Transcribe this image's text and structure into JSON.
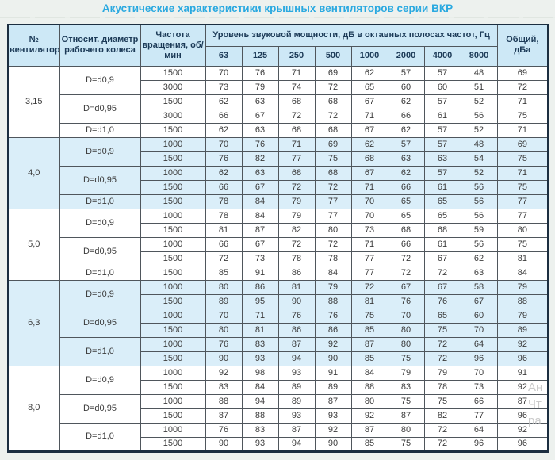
{
  "title": "Акустические характеристики крышных вентиляторов серии ВКР",
  "colors": {
    "title_text": "#2AA9E0",
    "header_bg": "#CDE8F6",
    "shaded_row_bg": "#DAEEF9",
    "header_text": "#1C3A57",
    "cell_text": "#3B3B3B",
    "outer_border": "#1C2E40",
    "inner_border": "#4F565C",
    "page_bg": "#EDF1EE"
  },
  "watermark": {
    "lines": [
      "Ан",
      "Чт",
      "ра"
    ]
  },
  "table": {
    "headers": {
      "fan_no": "№ вентилятора",
      "diameter": "Относит. диаметр рабочего колеса",
      "speed": "Частота вращения, об/мин",
      "spl_group": "Уровень звуковой мощности, дБ в октавных полосах частот, Гц",
      "frequencies": [
        "63",
        "125",
        "250",
        "500",
        "1000",
        "2000",
        "4000",
        "8000"
      ],
      "total": "Общий, дБа"
    },
    "sections": [
      {
        "fan": "3,15",
        "shaded": false,
        "groups": [
          {
            "diameter": "D=d0,9",
            "rows": [
              {
                "speed": "1500",
                "levels": [
                  70,
                  76,
                  71,
                  69,
                  62,
                  57,
                  57,
                  48
                ],
                "total": 69
              },
              {
                "speed": "3000",
                "levels": [
                  73,
                  79,
                  74,
                  72,
                  65,
                  60,
                  60,
                  51
                ],
                "total": 72
              }
            ]
          },
          {
            "diameter": "D=d0,95",
            "rows": [
              {
                "speed": "1500",
                "levels": [
                  62,
                  63,
                  68,
                  68,
                  67,
                  62,
                  57,
                  52
                ],
                "total": 71
              },
              {
                "speed": "3000",
                "levels": [
                  66,
                  67,
                  72,
                  72,
                  71,
                  66,
                  61,
                  56
                ],
                "total": 75
              }
            ]
          },
          {
            "diameter": "D=d1,0",
            "rows": [
              {
                "speed": "1500",
                "levels": [
                  62,
                  63,
                  68,
                  68,
                  67,
                  62,
                  57,
                  52
                ],
                "total": 71
              }
            ]
          }
        ]
      },
      {
        "fan": "4,0",
        "shaded": true,
        "groups": [
          {
            "diameter": "D=d0,9",
            "rows": [
              {
                "speed": "1000",
                "levels": [
                  70,
                  76,
                  71,
                  69,
                  62,
                  57,
                  57,
                  48
                ],
                "total": 69
              },
              {
                "speed": "1500",
                "levels": [
                  76,
                  82,
                  77,
                  75,
                  68,
                  63,
                  63,
                  54
                ],
                "total": 75
              }
            ]
          },
          {
            "diameter": "D=d0,95",
            "rows": [
              {
                "speed": "1000",
                "levels": [
                  62,
                  63,
                  68,
                  68,
                  67,
                  62,
                  57,
                  52
                ],
                "total": 71
              },
              {
                "speed": "1500",
                "levels": [
                  66,
                  67,
                  72,
                  72,
                  71,
                  66,
                  61,
                  56
                ],
                "total": 75
              }
            ]
          },
          {
            "diameter": "D=d1,0",
            "rows": [
              {
                "speed": "1500",
                "levels": [
                  78,
                  84,
                  79,
                  77,
                  70,
                  65,
                  65,
                  56
                ],
                "total": 77
              }
            ]
          }
        ]
      },
      {
        "fan": "5,0",
        "shaded": false,
        "groups": [
          {
            "diameter": "D=d0,9",
            "rows": [
              {
                "speed": "1000",
                "levels": [
                  78,
                  84,
                  79,
                  77,
                  70,
                  65,
                  65,
                  56
                ],
                "total": 77
              },
              {
                "speed": "1500",
                "levels": [
                  81,
                  87,
                  82,
                  80,
                  73,
                  68,
                  68,
                  59
                ],
                "total": 80
              }
            ]
          },
          {
            "diameter": "D=d0,95",
            "rows": [
              {
                "speed": "1000",
                "levels": [
                  66,
                  67,
                  72,
                  72,
                  71,
                  66,
                  61,
                  56
                ],
                "total": 75
              },
              {
                "speed": "1500",
                "levels": [
                  72,
                  73,
                  78,
                  78,
                  77,
                  72,
                  67,
                  62
                ],
                "total": 81
              }
            ]
          },
          {
            "diameter": "D=d1,0",
            "rows": [
              {
                "speed": "1500",
                "levels": [
                  85,
                  91,
                  86,
                  84,
                  77,
                  72,
                  72,
                  63
                ],
                "total": 84
              }
            ]
          }
        ]
      },
      {
        "fan": "6,3",
        "shaded": true,
        "groups": [
          {
            "diameter": "D=d0,9",
            "rows": [
              {
                "speed": "1000",
                "levels": [
                  80,
                  86,
                  81,
                  79,
                  72,
                  67,
                  67,
                  58
                ],
                "total": 79
              },
              {
                "speed": "1500",
                "levels": [
                  89,
                  95,
                  90,
                  88,
                  81,
                  76,
                  76,
                  67
                ],
                "total": 88
              }
            ]
          },
          {
            "diameter": "D=d0,95",
            "rows": [
              {
                "speed": "1000",
                "levels": [
                  70,
                  71,
                  76,
                  76,
                  75,
                  70,
                  65,
                  60
                ],
                "total": 79
              },
              {
                "speed": "1500",
                "levels": [
                  80,
                  81,
                  86,
                  86,
                  85,
                  80,
                  75,
                  70
                ],
                "total": 89
              }
            ]
          },
          {
            "diameter": "D=d1,0",
            "rows": [
              {
                "speed": "1000",
                "levels": [
                  76,
                  83,
                  87,
                  92,
                  87,
                  80,
                  72,
                  64
                ],
                "total": 92
              },
              {
                "speed": "1500",
                "levels": [
                  90,
                  93,
                  94,
                  90,
                  85,
                  75,
                  72,
                  96
                ],
                "total": 96
              }
            ]
          }
        ]
      },
      {
        "fan": "8,0",
        "shaded": false,
        "groups": [
          {
            "diameter": "D=d0,9",
            "rows": [
              {
                "speed": "1000",
                "levels": [
                  92,
                  98,
                  93,
                  91,
                  84,
                  79,
                  79,
                  70
                ],
                "total": 91
              },
              {
                "speed": "1500",
                "levels": [
                  83,
                  84,
                  89,
                  89,
                  88,
                  83,
                  78,
                  73
                ],
                "total": 92
              }
            ]
          },
          {
            "diameter": "D=d0,95",
            "rows": [
              {
                "speed": "1000",
                "levels": [
                  88,
                  94,
                  89,
                  87,
                  80,
                  75,
                  75,
                  66
                ],
                "total": 87
              },
              {
                "speed": "1500",
                "levels": [
                  87,
                  88,
                  93,
                  93,
                  92,
                  87,
                  82,
                  77
                ],
                "total": 96
              }
            ]
          },
          {
            "diameter": "D=d1,0",
            "rows": [
              {
                "speed": "1000",
                "levels": [
                  76,
                  83,
                  87,
                  92,
                  87,
                  80,
                  72,
                  64
                ],
                "total": 92
              },
              {
                "speed": "1500",
                "levels": [
                  90,
                  93,
                  94,
                  90,
                  85,
                  75,
                  72,
                  96
                ],
                "total": 96
              }
            ]
          }
        ]
      }
    ]
  }
}
